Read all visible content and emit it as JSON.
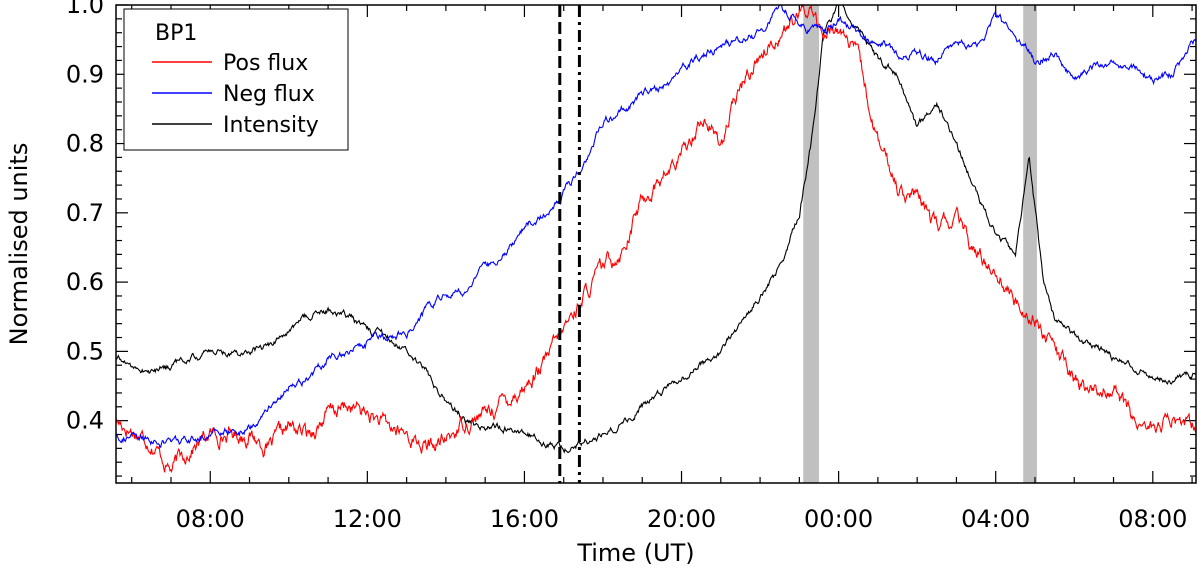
{
  "chart_data": {
    "type": "line",
    "xlabel": "Time (UT)",
    "ylabel": "Normalised units",
    "xlim_hours": [
      5.6,
      33.1
    ],
    "ylim": [
      0.31,
      1.0
    ],
    "x_ticks": [
      {
        "hour": 8,
        "label": "08:00"
      },
      {
        "hour": 12,
        "label": "12:00"
      },
      {
        "hour": 16,
        "label": "16:00"
      },
      {
        "hour": 20,
        "label": "20:00"
      },
      {
        "hour": 24,
        "label": "00:00"
      },
      {
        "hour": 28,
        "label": "04:00"
      },
      {
        "hour": 32,
        "label": "08:00"
      }
    ],
    "y_ticks": [
      0.4,
      0.5,
      0.6,
      0.7,
      0.8,
      0.9,
      1.0
    ],
    "legend": {
      "title": "BP1",
      "placement": "top-left"
    },
    "vlines": [
      {
        "x": 16.9,
        "style": "dashed"
      },
      {
        "x": 17.4,
        "style": "dashdot"
      }
    ],
    "shaded_bands": [
      {
        "x0": 23.1,
        "x1": 23.5,
        "color": "#c0c0c0"
      },
      {
        "x0": 28.7,
        "x1": 29.05,
        "color": "#c0c0c0"
      }
    ],
    "series": [
      {
        "name": "Pos flux",
        "color": "#ff0000",
        "x": [
          5.6,
          6.5,
          7.0,
          7.5,
          8.0,
          9.0,
          9.5,
          10.0,
          10.5,
          11.0,
          11.5,
          12.0,
          12.5,
          13.0,
          13.5,
          14.0,
          14.5,
          15.0,
          15.5,
          16.0,
          16.5,
          17.0,
          17.5,
          18.0,
          18.5,
          19.0,
          19.5,
          20.0,
          20.5,
          21.0,
          21.5,
          22.0,
          22.5,
          23.0,
          23.3,
          23.6,
          24.0,
          24.5,
          25.0,
          25.5,
          26.0,
          26.5,
          27.0,
          27.5,
          28.0,
          28.5,
          29.0,
          29.5,
          30.0,
          30.5,
          31.0,
          31.5,
          32.0,
          32.5,
          33.1
        ],
        "y": [
          0.4,
          0.37,
          0.33,
          0.36,
          0.38,
          0.38,
          0.36,
          0.39,
          0.38,
          0.41,
          0.42,
          0.41,
          0.39,
          0.38,
          0.36,
          0.37,
          0.4,
          0.41,
          0.43,
          0.45,
          0.48,
          0.53,
          0.58,
          0.62,
          0.65,
          0.72,
          0.75,
          0.78,
          0.84,
          0.8,
          0.88,
          0.93,
          0.96,
          0.98,
          1.0,
          0.95,
          0.97,
          0.92,
          0.8,
          0.74,
          0.72,
          0.68,
          0.69,
          0.64,
          0.62,
          0.57,
          0.55,
          0.5,
          0.46,
          0.44,
          0.45,
          0.4,
          0.39,
          0.4,
          0.39
        ]
      },
      {
        "name": "Neg flux",
        "color": "#0000ff",
        "x": [
          5.6,
          6.5,
          7.0,
          7.5,
          8.0,
          9.0,
          9.5,
          10.0,
          10.5,
          11.0,
          11.5,
          12.0,
          12.5,
          13.0,
          13.5,
          14.0,
          14.5,
          15.0,
          15.5,
          16.0,
          16.5,
          17.0,
          17.5,
          18.0,
          18.5,
          19.0,
          19.5,
          20.0,
          20.5,
          21.0,
          21.5,
          22.0,
          22.5,
          23.0,
          23.5,
          24.0,
          24.5,
          25.0,
          25.5,
          26.0,
          26.5,
          27.0,
          27.5,
          28.0,
          28.5,
          29.0,
          29.5,
          30.0,
          30.5,
          31.0,
          31.5,
          32.0,
          32.5,
          33.1
        ],
        "y": [
          0.38,
          0.37,
          0.37,
          0.37,
          0.38,
          0.39,
          0.42,
          0.45,
          0.46,
          0.49,
          0.5,
          0.51,
          0.52,
          0.53,
          0.56,
          0.58,
          0.59,
          0.62,
          0.64,
          0.68,
          0.7,
          0.73,
          0.77,
          0.83,
          0.85,
          0.87,
          0.88,
          0.9,
          0.93,
          0.94,
          0.95,
          0.96,
          1.0,
          0.97,
          0.96,
          0.98,
          0.96,
          0.95,
          0.93,
          0.93,
          0.92,
          0.95,
          0.94,
          0.98,
          0.96,
          0.92,
          0.93,
          0.89,
          0.91,
          0.92,
          0.91,
          0.89,
          0.9,
          0.95
        ]
      },
      {
        "name": "Intensity",
        "color": "#000000",
        "x": [
          5.6,
          6.0,
          6.5,
          7.0,
          7.5,
          8.0,
          8.5,
          9.0,
          9.5,
          10.0,
          10.5,
          11.0,
          11.5,
          12.0,
          12.5,
          13.0,
          13.5,
          14.0,
          14.5,
          15.0,
          15.5,
          16.0,
          16.5,
          17.0,
          17.5,
          18.0,
          18.5,
          19.0,
          19.5,
          20.0,
          20.5,
          21.0,
          21.5,
          22.0,
          22.5,
          23.0,
          23.3,
          23.6,
          24.0,
          24.5,
          25.0,
          25.5,
          26.0,
          26.5,
          27.0,
          27.5,
          28.0,
          28.5,
          28.85,
          29.2,
          29.5,
          30.0,
          30.5,
          31.0,
          31.5,
          32.0,
          32.5,
          33.1
        ],
        "y": [
          0.49,
          0.48,
          0.47,
          0.48,
          0.49,
          0.5,
          0.5,
          0.5,
          0.51,
          0.53,
          0.55,
          0.56,
          0.55,
          0.53,
          0.52,
          0.5,
          0.47,
          0.43,
          0.4,
          0.39,
          0.39,
          0.38,
          0.37,
          0.36,
          0.37,
          0.38,
          0.4,
          0.42,
          0.44,
          0.46,
          0.48,
          0.5,
          0.54,
          0.58,
          0.62,
          0.7,
          0.8,
          0.95,
          1.0,
          0.97,
          0.92,
          0.9,
          0.82,
          0.86,
          0.8,
          0.73,
          0.67,
          0.64,
          0.78,
          0.61,
          0.55,
          0.52,
          0.51,
          0.49,
          0.48,
          0.46,
          0.46,
          0.47
        ]
      }
    ]
  }
}
